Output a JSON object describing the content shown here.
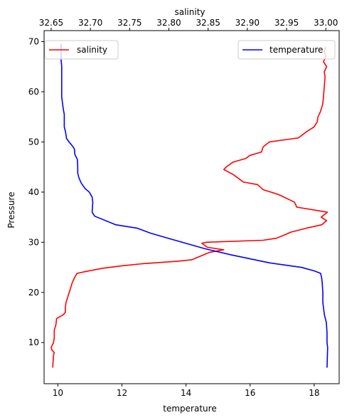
{
  "chart_data": {
    "type": "line",
    "top_axis": {
      "label": "salinity",
      "ticks": [
        32.65,
        32.7,
        32.75,
        32.8,
        32.85,
        32.9,
        32.95,
        33.0
      ],
      "tick_labels": [
        "32.65",
        "32.70",
        "32.75",
        "32.80",
        "32.85",
        "32.90",
        "32.95",
        "33.00"
      ],
      "range": [
        32.641,
        33.017
      ]
    },
    "bottom_axis": {
      "label": "temperature",
      "ticks": [
        10,
        12,
        14,
        16,
        18
      ],
      "tick_labels": [
        "10",
        "12",
        "14",
        "16",
        "18"
      ],
      "range": [
        9.57,
        18.78
      ]
    },
    "y_axis": {
      "label": "Pressure",
      "ticks": [
        10,
        20,
        30,
        40,
        50,
        60,
        70
      ],
      "tick_labels": [
        "10",
        "20",
        "30",
        "40",
        "50",
        "60",
        "70"
      ],
      "range": [
        1.8,
        72.2
      ]
    },
    "series": [
      {
        "name": "salinity",
        "axis": "top",
        "color": "#ff0000",
        "legend": "top-left",
        "points": [
          [
            32.652,
            5.0
          ],
          [
            32.653,
            7.5
          ],
          [
            32.654,
            8.0
          ],
          [
            32.651,
            8.5
          ],
          [
            32.65,
            9.0
          ],
          [
            32.653,
            10.0
          ],
          [
            32.654,
            11.0
          ],
          [
            32.654,
            12.5
          ],
          [
            32.656,
            13.5
          ],
          [
            32.657,
            14.8
          ],
          [
            32.665,
            15.5
          ],
          [
            32.668,
            16.0
          ],
          [
            32.668,
            17.0
          ],
          [
            32.669,
            18.0
          ],
          [
            32.671,
            19.0
          ],
          [
            32.673,
            20.0
          ],
          [
            32.675,
            21.0
          ],
          [
            32.677,
            22.0
          ],
          [
            32.68,
            23.0
          ],
          [
            32.683,
            23.8
          ],
          [
            32.695,
            24.2
          ],
          [
            32.715,
            24.8
          ],
          [
            32.74,
            25.3
          ],
          [
            32.765,
            25.7
          ],
          [
            32.81,
            26.2
          ],
          [
            32.829,
            26.5
          ],
          [
            32.852,
            28.0
          ],
          [
            32.87,
            28.5
          ],
          [
            32.849,
            29.0
          ],
          [
            32.842,
            29.8
          ],
          [
            32.848,
            30.0
          ],
          [
            32.92,
            30.4
          ],
          [
            32.937,
            30.8
          ],
          [
            32.948,
            31.5
          ],
          [
            32.955,
            32.0
          ],
          [
            32.975,
            32.8
          ],
          [
            32.995,
            33.5
          ],
          [
            33.001,
            34.3
          ],
          [
            32.994,
            35.0
          ],
          [
            33.002,
            36.0
          ],
          [
            32.963,
            37.0
          ],
          [
            32.96,
            38.0
          ],
          [
            32.94,
            39.5
          ],
          [
            32.92,
            40.5
          ],
          [
            32.913,
            41.5
          ],
          [
            32.895,
            42.0
          ],
          [
            32.882,
            43.5
          ],
          [
            32.87,
            44.5
          ],
          [
            32.873,
            45.0
          ],
          [
            32.882,
            46.0
          ],
          [
            32.898,
            46.7
          ],
          [
            32.903,
            47.3
          ],
          [
            32.918,
            48.0
          ],
          [
            32.92,
            49.0
          ],
          [
            32.928,
            50.0
          ],
          [
            32.965,
            50.8
          ],
          [
            32.975,
            52.0
          ],
          [
            32.985,
            53.0
          ],
          [
            32.989,
            54.0
          ],
          [
            32.99,
            55.0
          ],
          [
            32.993,
            56.0
          ],
          [
            32.996,
            57.5
          ],
          [
            32.997,
            59.0
          ],
          [
            32.998,
            61.0
          ],
          [
            32.999,
            63.0
          ],
          [
            32.998,
            64.0
          ],
          [
            33.001,
            65.0
          ],
          [
            32.997,
            66.0
          ],
          [
            33.0,
            67.0
          ],
          [
            32.998,
            68.0
          ],
          [
            33.0,
            69.0
          ]
        ]
      },
      {
        "name": "temperature",
        "axis": "bottom",
        "color": "#0000ff",
        "legend": "top-right",
        "points": [
          [
            18.4,
            5.0
          ],
          [
            18.41,
            7.0
          ],
          [
            18.42,
            9.0
          ],
          [
            18.4,
            10.0
          ],
          [
            18.4,
            12.0
          ],
          [
            18.38,
            14.0
          ],
          [
            18.32,
            15.5
          ],
          [
            18.3,
            16.5
          ],
          [
            18.27,
            18.0
          ],
          [
            18.27,
            20.0
          ],
          [
            18.25,
            22.0
          ],
          [
            18.23,
            23.0
          ],
          [
            18.2,
            23.8
          ],
          [
            18.0,
            24.3
          ],
          [
            17.6,
            25.0
          ],
          [
            16.6,
            25.9
          ],
          [
            15.4,
            27.5
          ],
          [
            14.6,
            28.7
          ],
          [
            14.1,
            29.6
          ],
          [
            13.55,
            30.6
          ],
          [
            12.9,
            31.8
          ],
          [
            12.48,
            32.8
          ],
          [
            11.8,
            33.5
          ],
          [
            11.15,
            35.2
          ],
          [
            11.07,
            36.0
          ],
          [
            11.09,
            38.0
          ],
          [
            11.07,
            39.0
          ],
          [
            10.98,
            40.0
          ],
          [
            10.85,
            40.7
          ],
          [
            10.73,
            41.8
          ],
          [
            10.66,
            42.8
          ],
          [
            10.62,
            43.8
          ],
          [
            10.62,
            45.0
          ],
          [
            10.61,
            46.5
          ],
          [
            10.53,
            47.5
          ],
          [
            10.52,
            48.5
          ],
          [
            10.48,
            49.0
          ],
          [
            10.35,
            50.0
          ],
          [
            10.27,
            50.7
          ],
          [
            10.24,
            52.0
          ],
          [
            10.2,
            53.0
          ],
          [
            10.2,
            54.5
          ],
          [
            10.2,
            55.5
          ],
          [
            10.17,
            56.5
          ],
          [
            10.15,
            57.5
          ],
          [
            10.12,
            59.0
          ],
          [
            10.12,
            61.0
          ],
          [
            10.12,
            63.0
          ],
          [
            10.12,
            65.0
          ],
          [
            10.1,
            66.5
          ],
          [
            10.1,
            68.0
          ],
          [
            10.1,
            69.5
          ]
        ]
      }
    ],
    "grid": false
  }
}
